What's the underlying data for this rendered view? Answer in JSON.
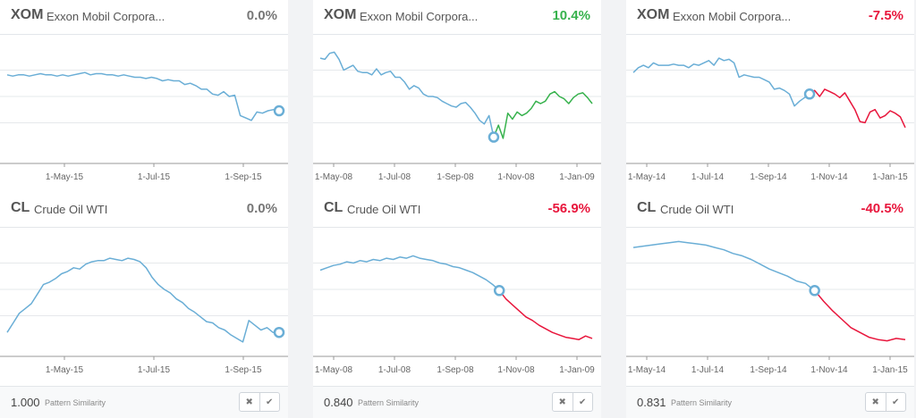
{
  "colors": {
    "line": "#6aaed6",
    "up": "#37b24d",
    "down": "#e8163c",
    "neutral": "#777777",
    "grid": "#e6e8eb",
    "axis": "#999999",
    "tick": "#666666"
  },
  "columns": [
    {
      "similarity": {
        "value": "1.000",
        "label": "Pattern Similarity"
      },
      "buttons": {
        "dismiss_icon": "close-icon",
        "dismiss": "✖",
        "confirm_icon": "check-icon",
        "confirm": "✔"
      },
      "panels": [
        {
          "symbol": "XOM",
          "name": "Exxon Mobil Corpora...",
          "change": "0.0%",
          "direction": "neutral"
        },
        {
          "symbol": "CL",
          "name": "Crude Oil WTI",
          "change": "0.0%",
          "direction": "neutral"
        }
      ]
    },
    {
      "similarity": {
        "value": "0.840",
        "label": "Pattern Similarity"
      },
      "buttons": {
        "dismiss_icon": "close-icon",
        "dismiss": "✖",
        "confirm_icon": "check-icon",
        "confirm": "✔"
      },
      "panels": [
        {
          "symbol": "XOM",
          "name": "Exxon Mobil Corpora...",
          "change": "10.4%",
          "direction": "up"
        },
        {
          "symbol": "CL",
          "name": "Crude Oil WTI",
          "change": "-56.9%",
          "direction": "down"
        }
      ]
    },
    {
      "similarity": {
        "value": "0.831",
        "label": "Pattern Similarity"
      },
      "buttons": {
        "dismiss_icon": "close-icon",
        "dismiss": "✖",
        "confirm_icon": "check-icon",
        "confirm": "✔"
      },
      "panels": [
        {
          "symbol": "XOM",
          "name": "Exxon Mobil Corpora...",
          "change": "-7.5%",
          "direction": "down"
        },
        {
          "symbol": "CL",
          "name": "Crude Oil WTI",
          "change": "-40.5%",
          "direction": "down"
        }
      ]
    }
  ],
  "chart_data": [
    {
      "type": "line",
      "title": "XOM Exxon Mobil Corpora...",
      "x_ticks": [
        "1-May-15",
        "1-Jul-15",
        "1-Sep-15"
      ],
      "series": [
        {
          "values": [
            0.74,
            0.73,
            0.74,
            0.74,
            0.73,
            0.74,
            0.75,
            0.74,
            0.74,
            0.73,
            0.74,
            0.73,
            0.74,
            0.75,
            0.76,
            0.74,
            0.75,
            0.75,
            0.74,
            0.74,
            0.73,
            0.74,
            0.73,
            0.72,
            0.72,
            0.71,
            0.72,
            0.71,
            0.69,
            0.7,
            0.69,
            0.69,
            0.66,
            0.67,
            0.65,
            0.62,
            0.62,
            0.58,
            0.57,
            0.6,
            0.56,
            0.57,
            0.4,
            0.38,
            0.36,
            0.43,
            0.42,
            0.44,
            0.45,
            0.44
          ]
        }
      ],
      "split_index": 49
    },
    {
      "type": "line",
      "title": "XOM Exxon Mobil Corpora...",
      "x_ticks": [
        "1-May-08",
        "1-Jul-08",
        "1-Sep-08",
        "1-Nov-08",
        "1-Jan-09"
      ],
      "series": [
        {
          "values": [
            0.88,
            0.87,
            0.92,
            0.93,
            0.87,
            0.78,
            0.8,
            0.82,
            0.77,
            0.76,
            0.76,
            0.74,
            0.79,
            0.74,
            0.76,
            0.77,
            0.72,
            0.72,
            0.68,
            0.62,
            0.65,
            0.63,
            0.58,
            0.56,
            0.56,
            0.55,
            0.52,
            0.5,
            0.48,
            0.47,
            0.5,
            0.51,
            0.47,
            0.42,
            0.36,
            0.33,
            0.4,
            0.22,
            0.32,
            0.21,
            0.42,
            0.37,
            0.43,
            0.4,
            0.42,
            0.46,
            0.52,
            0.5,
            0.52,
            0.58,
            0.6,
            0.56,
            0.54,
            0.5,
            0.55,
            0.58,
            0.59,
            0.55,
            0.5
          ]
        }
      ],
      "split_index": 37
    },
    {
      "type": "line",
      "title": "XOM Exxon Mobil Corpora...",
      "x_ticks": [
        "1-May-14",
        "1-Jul-14",
        "1-Sep-14",
        "1-Nov-14",
        "1-Jan-15"
      ],
      "series": [
        {
          "values": [
            0.76,
            0.8,
            0.82,
            0.8,
            0.84,
            0.82,
            0.82,
            0.82,
            0.83,
            0.82,
            0.82,
            0.8,
            0.83,
            0.82,
            0.84,
            0.86,
            0.82,
            0.88,
            0.86,
            0.87,
            0.84,
            0.72,
            0.74,
            0.73,
            0.72,
            0.72,
            0.7,
            0.68,
            0.62,
            0.63,
            0.61,
            0.58,
            0.48,
            0.52,
            0.55,
            0.58,
            0.61,
            0.56,
            0.62,
            0.6,
            0.58,
            0.55,
            0.59,
            0.52,
            0.45,
            0.35,
            0.34,
            0.43,
            0.45,
            0.38,
            0.4,
            0.44,
            0.42,
            0.39,
            0.3
          ]
        }
      ],
      "split_index": 35
    },
    {
      "type": "line",
      "title": "CL Crude Oil WTI",
      "x_ticks": [
        "1-May-15",
        "1-Jul-15",
        "1-Sep-15"
      ],
      "series": [
        {
          "values": [
            0.2,
            0.28,
            0.36,
            0.4,
            0.44,
            0.52,
            0.6,
            0.62,
            0.65,
            0.69,
            0.71,
            0.74,
            0.73,
            0.77,
            0.79,
            0.8,
            0.8,
            0.82,
            0.81,
            0.8,
            0.82,
            0.81,
            0.79,
            0.74,
            0.66,
            0.6,
            0.56,
            0.53,
            0.48,
            0.45,
            0.4,
            0.37,
            0.33,
            0.29,
            0.28,
            0.24,
            0.22,
            0.18,
            0.15,
            0.12,
            0.3,
            0.26,
            0.22,
            0.24,
            0.2,
            0.2
          ]
        }
      ],
      "split_index": 45
    },
    {
      "type": "line",
      "title": "CL Crude Oil WTI",
      "x_ticks": [
        "1-May-08",
        "1-Jul-08",
        "1-Sep-08",
        "1-Nov-08",
        "1-Jan-09"
      ],
      "series": [
        {
          "values": [
            0.72,
            0.74,
            0.76,
            0.77,
            0.79,
            0.78,
            0.8,
            0.79,
            0.81,
            0.8,
            0.82,
            0.81,
            0.83,
            0.82,
            0.84,
            0.82,
            0.81,
            0.8,
            0.78,
            0.77,
            0.75,
            0.74,
            0.72,
            0.7,
            0.67,
            0.64,
            0.6,
            0.55,
            0.48,
            0.43,
            0.38,
            0.33,
            0.3,
            0.26,
            0.23,
            0.2,
            0.18,
            0.16,
            0.15,
            0.14,
            0.17,
            0.15
          ]
        }
      ],
      "split_index": 27
    },
    {
      "type": "line",
      "title": "CL Crude Oil WTI",
      "x_ticks": [
        "1-May-14",
        "1-Jul-14",
        "1-Sep-14",
        "1-Nov-14",
        "1-Jan-15"
      ],
      "series": [
        {
          "values": [
            0.91,
            0.92,
            0.93,
            0.94,
            0.95,
            0.96,
            0.95,
            0.94,
            0.93,
            0.91,
            0.89,
            0.86,
            0.84,
            0.81,
            0.77,
            0.73,
            0.7,
            0.67,
            0.63,
            0.61,
            0.55,
            0.46,
            0.38,
            0.31,
            0.24,
            0.2,
            0.16,
            0.14,
            0.13,
            0.15,
            0.14
          ]
        }
      ],
      "split_index": 20
    }
  ]
}
